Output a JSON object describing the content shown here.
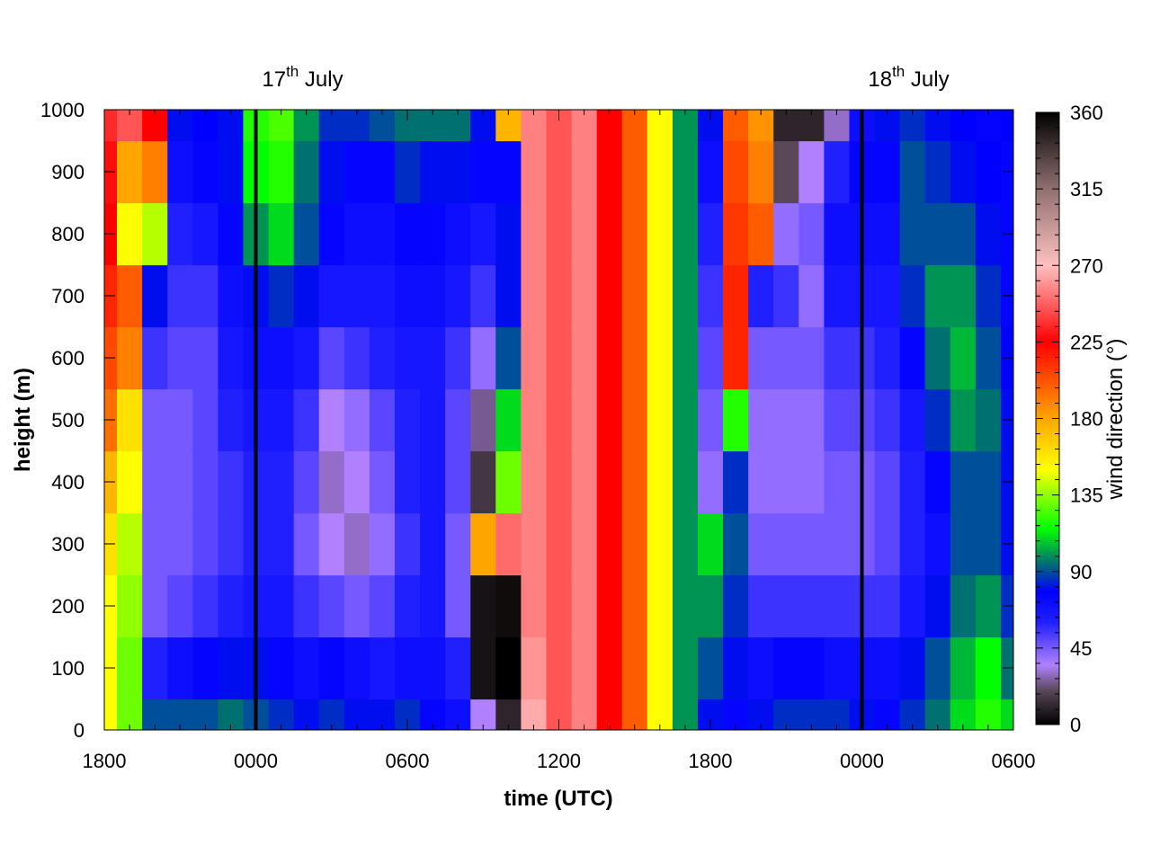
{
  "chart_data": {
    "type": "heatmap",
    "title": "",
    "xlabel": "time (UTC)",
    "ylabel": "height (m)",
    "colorbar_label": "wind direction (°)",
    "x_tick_labels": [
      "1800",
      "0000",
      "0600",
      "1200",
      "1800",
      "0000",
      "0600"
    ],
    "x_tick_hours": [
      0,
      6,
      12,
      18,
      24,
      30,
      36
    ],
    "x_range_hours": [
      0,
      36
    ],
    "y_ticks": [
      0,
      100,
      200,
      300,
      400,
      500,
      600,
      700,
      800,
      900,
      1000
    ],
    "y_range": [
      0,
      1000
    ],
    "colorbar_ticks": [
      0,
      45,
      90,
      135,
      180,
      225,
      270,
      315,
      360
    ],
    "colorbar_range": [
      0,
      360
    ],
    "colormap": [
      [
        0,
        "#000000"
      ],
      [
        20,
        "#5a4858"
      ],
      [
        35,
        "#b080ff"
      ],
      [
        60,
        "#2020ff"
      ],
      [
        78,
        "#0000ff"
      ],
      [
        95,
        "#007070"
      ],
      [
        115,
        "#00ff00"
      ],
      [
        150,
        "#ffff00"
      ],
      [
        180,
        "#ffa500"
      ],
      [
        225,
        "#ff0000"
      ],
      [
        270,
        "#ffc0c0"
      ],
      [
        315,
        "#907070"
      ],
      [
        360,
        "#000000"
      ]
    ],
    "date_markers": [
      {
        "date": "17",
        "suffix": "th",
        "month": " July",
        "hour": 6
      },
      {
        "date": "18",
        "suffix": "th",
        "month": " July",
        "hour": 30
      }
    ],
    "wind_direction_by_hour": {
      "hours": [
        0,
        1,
        2,
        3,
        4,
        5,
        6,
        7,
        8,
        9,
        10,
        11,
        12,
        13,
        14,
        15,
        16,
        17,
        18,
        19,
        20,
        21,
        22,
        23,
        24,
        25,
        26,
        27,
        28,
        29,
        30,
        31,
        32,
        33,
        34,
        35,
        36
      ],
      "heights": [
        0,
        100,
        200,
        300,
        400,
        500,
        600,
        700,
        800,
        900,
        1000
      ],
      "values": [
        [
          150,
          150,
          150,
          160,
          175,
          195,
          205,
          215,
          225,
          228,
          235
        ],
        [
          130,
          130,
          135,
          140,
          150,
          160,
          190,
          200,
          150,
          180,
          245
        ],
        [
          90,
          60,
          45,
          45,
          45,
          45,
          55,
          80,
          140,
          190,
          225
        ],
        [
          90,
          70,
          50,
          45,
          45,
          45,
          50,
          55,
          60,
          70,
          80
        ],
        [
          90,
          75,
          55,
          50,
          50,
          50,
          50,
          55,
          65,
          75,
          78
        ],
        [
          95,
          80,
          60,
          55,
          55,
          60,
          65,
          70,
          75,
          80,
          80
        ],
        [
          90,
          80,
          65,
          60,
          60,
          65,
          70,
          80,
          100,
          115,
          120
        ],
        [
          85,
          75,
          65,
          60,
          60,
          65,
          70,
          85,
          110,
          120,
          125
        ],
        [
          80,
          70,
          55,
          45,
          50,
          55,
          65,
          80,
          90,
          95,
          100
        ],
        [
          85,
          75,
          50,
          35,
          30,
          35,
          50,
          65,
          75,
          80,
          85
        ],
        [
          80,
          70,
          45,
          30,
          35,
          40,
          55,
          65,
          70,
          75,
          85
        ],
        [
          80,
          65,
          50,
          40,
          45,
          50,
          60,
          65,
          70,
          75,
          90
        ],
        [
          85,
          70,
          60,
          55,
          60,
          60,
          65,
          70,
          75,
          85,
          95
        ],
        [
          75,
          70,
          65,
          65,
          65,
          65,
          65,
          70,
          75,
          80,
          95
        ],
        [
          70,
          60,
          45,
          45,
          50,
          50,
          55,
          65,
          70,
          80,
          95
        ],
        [
          35,
          5,
          5,
          180,
          15,
          25,
          40,
          55,
          65,
          75,
          80
        ],
        [
          10,
          0,
          355,
          250,
          130,
          110,
          90,
          80,
          80,
          75,
          175
        ],
        [
          265,
          260,
          255,
          255,
          255,
          255,
          255,
          255,
          255,
          255,
          255
        ],
        [
          245,
          245,
          245,
          245,
          245,
          245,
          245,
          245,
          245,
          245,
          245
        ],
        [
          255,
          255,
          255,
          255,
          255,
          255,
          255,
          255,
          255,
          255,
          255
        ],
        [
          225,
          225,
          225,
          225,
          225,
          225,
          225,
          225,
          225,
          225,
          225
        ],
        [
          200,
          200,
          200,
          200,
          200,
          200,
          200,
          200,
          200,
          200,
          200
        ],
        [
          150,
          150,
          150,
          150,
          150,
          150,
          150,
          150,
          150,
          150,
          150
        ],
        [
          100,
          100,
          100,
          100,
          100,
          100,
          100,
          100,
          100,
          100,
          100
        ],
        [
          80,
          90,
          100,
          110,
          40,
          45,
          50,
          55,
          60,
          70,
          80
        ],
        [
          75,
          80,
          85,
          90,
          85,
          120,
          215,
          215,
          210,
          205,
          200
        ],
        [
          80,
          70,
          55,
          45,
          40,
          40,
          45,
          60,
          200,
          190,
          185
        ],
        [
          85,
          75,
          55,
          45,
          40,
          40,
          45,
          55,
          40,
          20,
          10
        ],
        [
          85,
          75,
          55,
          45,
          40,
          40,
          45,
          40,
          45,
          35,
          10
        ],
        [
          85,
          70,
          55,
          45,
          45,
          50,
          55,
          65,
          70,
          60,
          30
        ],
        [
          80,
          70,
          55,
          45,
          45,
          50,
          55,
          65,
          70,
          75,
          70
        ],
        [
          75,
          70,
          55,
          50,
          50,
          55,
          60,
          65,
          70,
          75,
          80
        ],
        [
          85,
          80,
          65,
          60,
          60,
          65,
          75,
          85,
          90,
          90,
          85
        ],
        [
          95,
          90,
          80,
          70,
          75,
          85,
          95,
          100,
          90,
          85,
          80
        ],
        [
          110,
          105,
          95,
          90,
          90,
          100,
          105,
          100,
          90,
          80,
          78
        ],
        [
          120,
          115,
          100,
          90,
          90,
          95,
          90,
          85,
          80,
          78,
          75
        ],
        [
          110,
          95,
          85,
          80,
          80,
          80,
          78,
          75,
          75,
          75,
          78
        ]
      ]
    }
  }
}
